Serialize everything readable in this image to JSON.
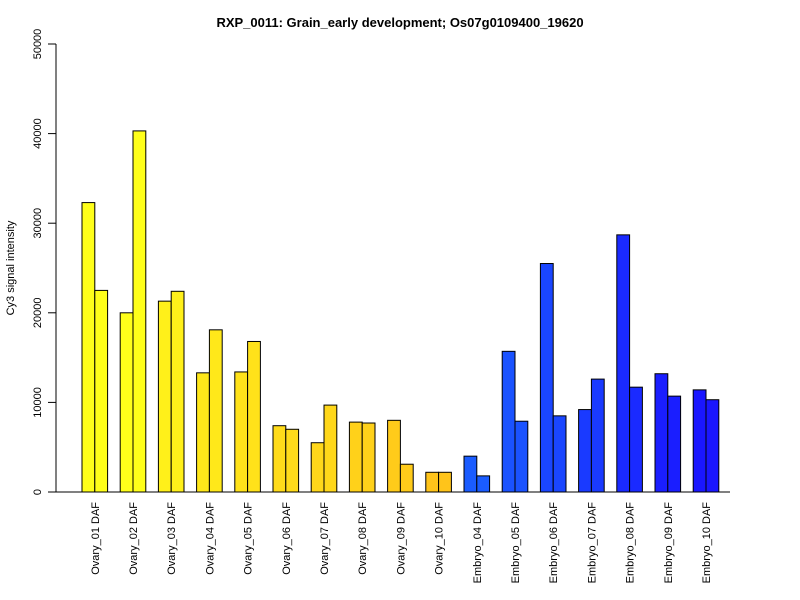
{
  "chart_data": {
    "type": "bar",
    "title": "RXP_0011: Grain_early development; Os07g0109400_19620",
    "xlabel": "",
    "ylabel": "Cy3 signal intensity",
    "ylim": [
      0,
      50000
    ],
    "yticks": [
      "0",
      "10000",
      "20000",
      "30000",
      "40000",
      "50000"
    ],
    "grid": false,
    "legend": "none",
    "categories": [
      "Ovary_01 DAF",
      "Ovary_02 DAF",
      "Ovary_03 DAF",
      "Ovary_04 DAF",
      "Ovary_05 DAF",
      "Ovary_06 DAF",
      "Ovary_07 DAF",
      "Ovary_08 DAF",
      "Ovary_09 DAF",
      "Ovary_10 DAF",
      "Embryo_04 DAF",
      "Embryo_05 DAF",
      "Embryo_06 DAF",
      "Embryo_07 DAF",
      "Embryo_08 DAF",
      "Embryo_09 DAF",
      "Embryo_10 DAF"
    ],
    "series": [
      {
        "values": [
          32300,
          20000,
          21300,
          13300,
          13400,
          7400,
          5500,
          7800,
          8000,
          2200,
          4000,
          15700,
          25500,
          9200,
          28700,
          13200,
          11400
        ]
      },
      {
        "values": [
          22500,
          40300,
          22400,
          18100,
          16800,
          7000,
          9700,
          7700,
          3100,
          2200,
          1800,
          7900,
          8500,
          12600,
          11700,
          10700,
          10300
        ]
      }
    ],
    "category_colors": [
      "#ffff1a",
      "#ffff1a",
      "#fff01a",
      "#ffe81a",
      "#ffe21a",
      "#ffdb1a",
      "#ffd71a",
      "#ffd11a",
      "#ffcb1a",
      "#ffc41a",
      "#1a5cff",
      "#1a52ff",
      "#1a46ff",
      "#1a3aff",
      "#1a2aff",
      "#1a1eff",
      "#1a16ff"
    ]
  }
}
